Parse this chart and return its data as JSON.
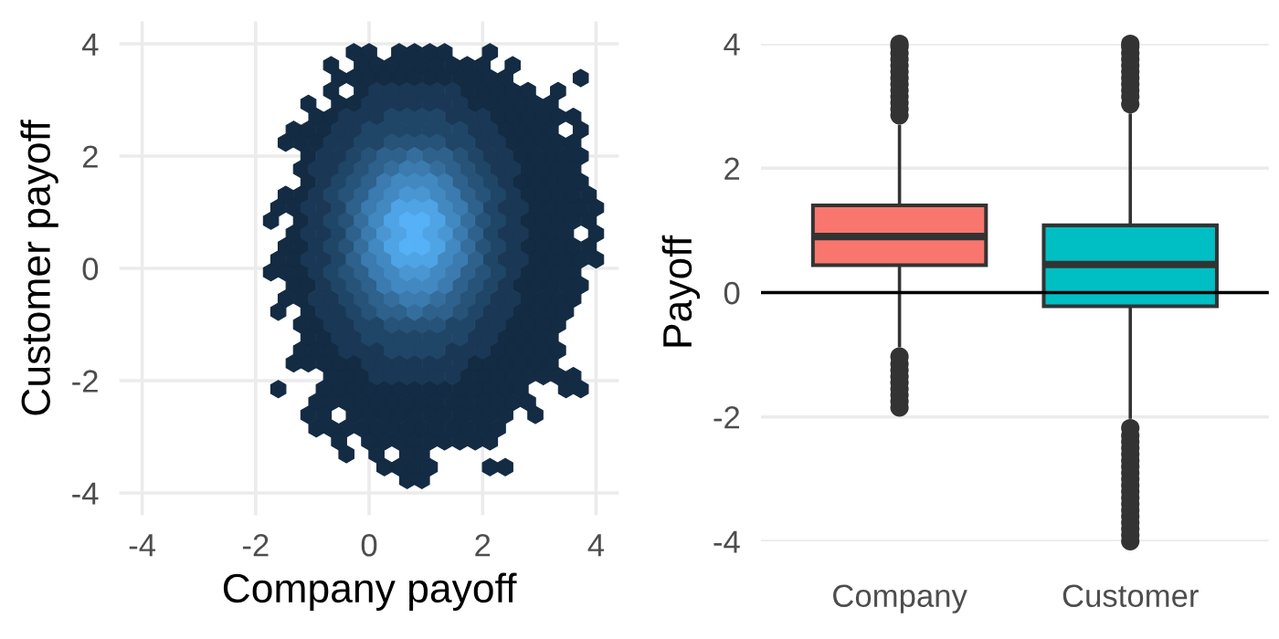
{
  "chart_data": [
    {
      "type": "scatter",
      "xlabel": "Company payoff",
      "ylabel": "Customer payoff",
      "xlim": [
        -4.4,
        4.4
      ],
      "ylim": [
        -4.4,
        4.4
      ],
      "xticks": [
        -4,
        -2,
        0,
        2,
        4
      ],
      "yticks": [
        -4,
        -2,
        0,
        2,
        4
      ],
      "grid": true,
      "series": [
        {
          "color": "#132b43",
          "x": [
            -0.27,
            0,
            0.53,
            0.8,
            1.07,
            1.33,
            2.13,
            -0.67,
            -0.13,
            0.13,
            0.4,
            0.67,
            0.93,
            1.2,
            1.47,
            1.73,
            2,
            2.53,
            -0.53,
            -0.27,
            0,
            0.27,
            0.53,
            0.8,
            1.07,
            1.33,
            1.6,
            1.87,
            2.13,
            2.4,
            3.73,
            -0.67,
            -0.13,
            1.73,
            2,
            2.27,
            2.53,
            2.8,
            3.33,
            -1.07,
            -0.53,
            -0.27,
            1.87,
            2.13,
            2.4,
            2.67,
            2.93,
            3.2,
            -0.93,
            -0.67,
            2.27,
            2.53,
            2.8,
            3.07,
            3.33,
            3.6,
            -1.33,
            -1.07,
            -0.8,
            2.4,
            2.67,
            2.93,
            3.2,
            3.73,
            -1.47,
            -1.2,
            -0.93,
            2.53,
            2.8,
            3.07,
            3.33,
            3.6,
            -1.07,
            2.67,
            2.93,
            3.2,
            3.47,
            3.73,
            -1.2,
            2.8,
            3.07,
            3.33,
            3.6,
            -1.07,
            2.67,
            2.93,
            3.2,
            3.47,
            3.73,
            -1.47,
            -1.2,
            2.8,
            3.07,
            3.33,
            3.6,
            3.87,
            -1.6,
            -1.33,
            2.93,
            3.2,
            3.47,
            3.73,
            4,
            -1.73,
            -1.2,
            2.8,
            3.07,
            3.33,
            3.6,
            3.87,
            -1.33,
            2.93,
            3.2,
            3.47,
            4,
            -1.47,
            -1.2,
            2.8,
            3.07,
            3.33,
            3.6,
            3.87,
            -1.6,
            -1.33,
            2.93,
            3.2,
            3.47,
            3.73,
            4,
            -1.73,
            -1.47,
            -1.2,
            2.8,
            3.07,
            3.33,
            3.6,
            -1.33,
            -1.07,
            2.67,
            2.93,
            3.2,
            3.47,
            3.73,
            -1.47,
            -1.2,
            2.8,
            3.07,
            3.33,
            3.6,
            -1.6,
            -1.07,
            2.67,
            2.93,
            3.2,
            3.47,
            -1.2,
            -0.93,
            2.53,
            2.8,
            3.07,
            3.33,
            -1.07,
            -0.8,
            2.4,
            2.67,
            2.93,
            3.2,
            -1.2,
            -0.93,
            -0.67,
            2.27,
            2.53,
            2.8,
            3.07,
            3.33,
            -1.33,
            -1.07,
            -0.8,
            -0.53,
            -0.27,
            1.87,
            2.13,
            2.4,
            2.67,
            2.93,
            3.2,
            -0.67,
            -0.4,
            -0.13,
            1.73,
            2,
            2.27,
            2.53,
            2.8,
            3.07,
            3.33,
            3.6,
            -1.6,
            -0.8,
            -0.53,
            -0.27,
            0,
            0.27,
            0.53,
            0.8,
            1.07,
            1.33,
            1.6,
            1.87,
            2.13,
            2.4,
            2.67,
            3.47,
            3.73,
            -0.93,
            -0.67,
            -0.4,
            -0.13,
            0.13,
            0.4,
            0.67,
            0.93,
            1.2,
            1.47,
            1.73,
            2,
            2.27,
            2.53,
            2.8,
            -1.07,
            -0.8,
            -0.27,
            0,
            0.27,
            0.53,
            0.8,
            1.07,
            1.33,
            1.6,
            1.87,
            2.13,
            2.4,
            2.93,
            -0.93,
            -0.67,
            -0.4,
            -0.13,
            0.13,
            0.4,
            0.67,
            0.93,
            1.2,
            1.47,
            1.73,
            2,
            2.27,
            -0.53,
            0,
            0.27,
            0.53,
            0.8,
            1.07,
            1.33,
            1.6,
            1.87,
            2.13,
            -0.4,
            0.13,
            0.67,
            0.93,
            0.27,
            0.53,
            0.8,
            1.07,
            2.13,
            2.4,
            0.67,
            0.93
          ],
          "values": [
            3.85,
            3.85,
            3.85,
            3.85,
            3.85,
            3.85,
            3.85,
            3.62,
            3.62,
            3.62,
            3.62,
            3.62,
            3.62,
            3.62,
            3.62,
            3.62,
            3.62,
            3.62,
            3.39,
            3.39,
            3.39,
            3.39,
            3.39,
            3.39,
            3.39,
            3.39,
            3.39,
            3.39,
            3.39,
            3.39,
            3.39,
            3.16,
            3.16,
            3.16,
            3.16,
            3.16,
            3.16,
            3.16,
            3.16,
            2.93,
            2.93,
            2.93,
            2.93,
            2.93,
            2.93,
            2.93,
            2.93,
            2.93,
            2.7,
            2.7,
            2.7,
            2.7,
            2.7,
            2.7,
            2.7,
            2.7,
            2.47,
            2.47,
            2.47,
            2.47,
            2.47,
            2.47,
            2.47,
            2.47,
            2.24,
            2.24,
            2.24,
            2.24,
            2.24,
            2.24,
            2.24,
            2.24,
            2,
            2,
            2,
            2,
            2,
            2,
            1.77,
            1.77,
            1.77,
            1.77,
            1.77,
            1.54,
            1.54,
            1.54,
            1.54,
            1.54,
            1.54,
            1.31,
            1.31,
            1.31,
            1.31,
            1.31,
            1.31,
            1.31,
            1.08,
            1.08,
            1.08,
            1.08,
            1.08,
            1.08,
            1.08,
            0.85,
            0.85,
            0.85,
            0.85,
            0.85,
            0.85,
            0.85,
            0.62,
            0.62,
            0.62,
            0.62,
            0.62,
            0.39,
            0.39,
            0.39,
            0.39,
            0.39,
            0.39,
            0.39,
            0.16,
            0.16,
            0.16,
            0.16,
            0.16,
            0.16,
            0.16,
            -0.07,
            -0.07,
            -0.07,
            -0.07,
            -0.07,
            -0.07,
            -0.07,
            -0.3,
            -0.3,
            -0.3,
            -0.3,
            -0.3,
            -0.3,
            -0.3,
            -0.54,
            -0.54,
            -0.54,
            -0.54,
            -0.54,
            -0.54,
            -0.77,
            -0.77,
            -0.77,
            -0.77,
            -0.77,
            -0.77,
            -1,
            -1,
            -1,
            -1,
            -1,
            -1,
            -1.23,
            -1.23,
            -1.23,
            -1.23,
            -1.23,
            -1.23,
            -1.46,
            -1.46,
            -1.46,
            -1.46,
            -1.46,
            -1.46,
            -1.46,
            -1.46,
            -1.69,
            -1.69,
            -1.69,
            -1.69,
            -1.69,
            -1.69,
            -1.69,
            -1.69,
            -1.69,
            -1.69,
            -1.69,
            -1.92,
            -1.92,
            -1.92,
            -1.92,
            -1.92,
            -1.92,
            -1.92,
            -1.92,
            -1.92,
            -1.92,
            -1.92,
            -2.15,
            -2.15,
            -2.15,
            -2.15,
            -2.15,
            -2.15,
            -2.15,
            -2.15,
            -2.15,
            -2.15,
            -2.15,
            -2.15,
            -2.15,
            -2.15,
            -2.15,
            -2.15,
            -2.15,
            -2.38,
            -2.38,
            -2.38,
            -2.38,
            -2.38,
            -2.38,
            -2.38,
            -2.38,
            -2.38,
            -2.38,
            -2.38,
            -2.38,
            -2.38,
            -2.38,
            -2.38,
            -2.61,
            -2.61,
            -2.61,
            -2.61,
            -2.61,
            -2.61,
            -2.61,
            -2.61,
            -2.61,
            -2.61,
            -2.61,
            -2.61,
            -2.61,
            -2.61,
            -2.85,
            -2.85,
            -2.85,
            -2.85,
            -2.85,
            -2.85,
            -2.85,
            -2.85,
            -2.85,
            -2.85,
            -2.85,
            -2.85,
            -2.85,
            -3.08,
            -3.08,
            -3.08,
            -3.08,
            -3.08,
            -3.08,
            -3.08,
            -3.08,
            -3.08,
            -3.08,
            -3.31,
            -3.31,
            -3.31,
            -3.31,
            -3.54,
            -3.54,
            -3.54,
            -3.54,
            -3.54,
            -3.54,
            -3.77,
            -3.77
          ]
        },
        {
          "color": "#1a3855",
          "x": [
            0.13,
            0.4,
            0.67,
            0.93,
            1.2,
            1.47,
            0,
            0.27,
            0.53,
            0.8,
            1.07,
            1.33,
            1.6,
            -0.4,
            -0.13,
            0.13,
            1.47,
            1.73,
            2,
            -0.53,
            -0.27,
            1.87,
            2.13,
            -0.67,
            -0.4,
            2,
            2.27,
            -0.8,
            -0.53,
            2.13,
            2.4,
            -0.93,
            -0.67,
            2.27,
            2.53,
            -0.8,
            2.4,
            -0.93,
            2.53,
            -1.07,
            -0.8,
            2.4,
            2.67,
            -0.93,
            2.53,
            -1.07,
            -0.8,
            2.4,
            2.67,
            -0.93,
            2.53,
            -1.07,
            -0.8,
            2.4,
            2.67,
            -0.93,
            2.53,
            -0.8,
            2.4,
            -0.93,
            -0.67,
            2.27,
            2.53,
            -0.8,
            -0.53,
            2.13,
            2.4,
            -0.67,
            -0.4,
            2,
            2.27,
            -0.53,
            -0.27,
            1.87,
            2.13,
            -0.4,
            -0.13,
            0.13,
            1.47,
            1.73,
            2,
            0,
            0.27,
            0.53,
            0.8,
            1.07,
            1.33,
            1.6,
            0.13,
            0.4,
            0.67,
            0.93,
            1.2,
            1.47
          ],
          "values": [
            3.16,
            3.16,
            3.16,
            3.16,
            3.16,
            3.16,
            2.93,
            2.93,
            2.93,
            2.93,
            2.93,
            2.93,
            2.93,
            2.7,
            2.7,
            2.7,
            2.7,
            2.7,
            2.7,
            2.47,
            2.47,
            2.47,
            2.47,
            2.24,
            2.24,
            2.24,
            2.24,
            2,
            2,
            2,
            2,
            1.77,
            1.77,
            1.77,
            1.77,
            1.54,
            1.54,
            1.31,
            1.31,
            1.08,
            1.08,
            1.08,
            1.08,
            0.85,
            0.85,
            0.62,
            0.62,
            0.62,
            0.62,
            0.39,
            0.39,
            0.16,
            0.16,
            0.16,
            0.16,
            -0.07,
            -0.07,
            -0.3,
            -0.3,
            -0.54,
            -0.54,
            -0.54,
            -0.54,
            -0.77,
            -0.77,
            -0.77,
            -0.77,
            -1,
            -1,
            -1,
            -1,
            -1.23,
            -1.23,
            -1.23,
            -1.23,
            -1.46,
            -1.46,
            -1.46,
            -1.46,
            -1.46,
            -1.46,
            -1.69,
            -1.69,
            -1.69,
            -1.69,
            -1.69,
            -1.69,
            -1.69,
            -1.92,
            -1.92,
            -1.92,
            -1.92,
            -1.92,
            -1.92
          ]
        },
        {
          "color": "#204667",
          "x": [
            0.4,
            0.67,
            0.93,
            1.2,
            0,
            0.27,
            0.53,
            0.8,
            1.07,
            1.33,
            1.6,
            -0.13,
            0.13,
            1.47,
            1.73,
            -0.27,
            1.87,
            -0.4,
            2,
            -0.53,
            2.13,
            -0.67,
            2.27,
            -0.53,
            2.13,
            -0.67,
            2.27,
            -0.53,
            2.13,
            -0.67,
            2.27,
            -0.53,
            2.13,
            -0.67,
            2.27,
            -0.53,
            2.13,
            -0.4,
            2,
            -0.27,
            1.87,
            -0.13,
            0.13,
            1.47,
            1.73,
            0,
            0.27,
            0.53,
            0.8,
            1.07,
            1.33,
            1.6,
            0.4,
            0.67,
            0.93,
            1.2
          ],
          "values": [
            2.7,
            2.7,
            2.7,
            2.7,
            2.47,
            2.47,
            2.47,
            2.47,
            2.47,
            2.47,
            2.47,
            2.24,
            2.24,
            2.24,
            2.24,
            2,
            2,
            1.77,
            1.77,
            1.54,
            1.54,
            1.31,
            1.31,
            1.08,
            1.08,
            0.85,
            0.85,
            0.62,
            0.62,
            0.39,
            0.39,
            0.16,
            0.16,
            -0.07,
            -0.07,
            -0.3,
            -0.3,
            -0.54,
            -0.54,
            -0.77,
            -0.77,
            -1,
            -1,
            -1,
            -1,
            -1.23,
            -1.23,
            -1.23,
            -1.23,
            -1.23,
            -1.23,
            -1.23,
            -1.46,
            -1.46,
            -1.46,
            -1.46
          ]
        },
        {
          "color": "#275379",
          "x": [
            0.4,
            0.67,
            0.93,
            1.2,
            0,
            1.6,
            -0.13,
            1.73,
            -0.27,
            1.87,
            -0.4,
            2,
            -0.4,
            2,
            -0.4,
            2,
            -0.4,
            2,
            -0.27,
            1.87,
            -0.13,
            1.73,
            0,
            1.6,
            0.4,
            0.67,
            0.93,
            1.2
          ],
          "values": [
            2.24,
            2.24,
            2.24,
            2.24,
            2,
            2,
            1.77,
            1.77,
            1.54,
            1.54,
            1.31,
            1.31,
            0.85,
            0.85,
            0.39,
            0.39,
            -0.07,
            -0.07,
            -0.3,
            -0.3,
            -0.54,
            -0.54,
            -0.77,
            -0.77,
            -1,
            -1,
            -1,
            -1
          ]
        },
        {
          "color": "#2e618b",
          "x": [
            0.27,
            0.53,
            1.07,
            1.33,
            0.13,
            1.47,
            0,
            1.6,
            -0.13,
            1.73,
            -0.27,
            1.87,
            -0.27,
            1.87,
            -0.27,
            1.87,
            -0.13,
            1.73,
            0,
            1.6,
            0.13,
            1.47,
            0.27,
            0.53,
            1.07,
            1.33
          ],
          "values": [
            2,
            2,
            2,
            2,
            1.77,
            1.77,
            1.54,
            1.54,
            1.31,
            1.31,
            1.08,
            1.08,
            0.62,
            0.62,
            0.16,
            0.16,
            -0.07,
            -0.07,
            -0.3,
            -0.3,
            -0.54,
            -0.54,
            -0.77,
            -0.77,
            -0.77,
            -0.77
          ]
        },
        {
          "color": "#356e9d",
          "x": [
            0.8,
            0.4,
            1.2,
            -0.13,
            1.73,
            -0.13,
            1.73,
            0.4,
            1.2,
            0.8
          ],
          "values": [
            2,
            1.77,
            1.77,
            0.85,
            0.85,
            0.39,
            0.39,
            -0.54,
            -0.54,
            -0.77
          ]
        },
        {
          "color": "#3b7baf",
          "x": [
            0.67,
            0.93,
            0.27,
            1.33,
            0.13,
            1.47,
            0,
            1.6,
            0,
            1.6,
            0,
            1.6,
            0.13,
            1.47,
            0.27,
            1.33,
            0.67,
            0.93
          ],
          "values": [
            1.77,
            1.77,
            1.54,
            1.54,
            1.31,
            1.31,
            1.08,
            1.08,
            0.62,
            0.62,
            0.16,
            0.16,
            -0.07,
            -0.07,
            -0.3,
            -0.3,
            -0.54,
            -0.54
          ]
        },
        {
          "color": "#4289c1",
          "x": [
            0.53,
            0.8,
            1.07,
            0.4,
            1.2,
            0.27,
            1.33,
            0.13,
            1.47,
            0.13,
            1.47,
            0.27,
            1.33,
            0.4,
            1.2,
            0.53,
            0.8,
            1.07
          ],
          "values": [
            1.54,
            1.54,
            1.54,
            1.31,
            1.31,
            1.08,
            1.08,
            0.85,
            0.85,
            0.39,
            0.39,
            0.16,
            0.16,
            -0.07,
            -0.07,
            -0.3,
            -0.3,
            -0.3
          ]
        },
        {
          "color": "#4996d3",
          "x": [
            0.67,
            0.93,
            0.27,
            1.33,
            0.67,
            0.93
          ],
          "values": [
            1.31,
            1.31,
            0.62,
            0.62,
            -0.07,
            -0.07
          ]
        },
        {
          "color": "#4fa4e5",
          "x": [
            0.53,
            0.8,
            1.07,
            0.4,
            1.2,
            0.53,
            1.07,
            0.4,
            1.2,
            0.53,
            0.8,
            1.07
          ],
          "values": [
            1.08,
            1.08,
            1.08,
            0.85,
            0.85,
            0.62,
            0.62,
            0.39,
            0.39,
            0.16,
            0.16,
            0.16
          ]
        },
        {
          "color": "#56b1f7",
          "x": [
            0.67,
            0.93,
            0.8,
            0.67,
            0.93
          ],
          "values": [
            0.85,
            0.85,
            0.62,
            0.39,
            0.39
          ]
        }
      ]
    },
    {
      "type": "box",
      "categories": [
        "Company",
        "Customer"
      ],
      "colors": [
        "#f8766d",
        "#00bfc4"
      ],
      "boxes": [
        {
          "low": -0.88,
          "q1": 0.44,
          "median": 0.9,
          "q3": 1.4,
          "high": 2.7,
          "outliers": [
            -1.85,
            -1.75,
            -1.65,
            -1.55,
            -1.45,
            -1.35,
            -1.25,
            -1.15,
            -1.03,
            2.85,
            2.95,
            3.05,
            3.15,
            3.25,
            3.35,
            3.45,
            3.55,
            3.65,
            3.75,
            3.85,
            3.95,
            4
          ]
        },
        {
          "low": -2.03,
          "q1": -0.22,
          "median": 0.45,
          "q3": 1.08,
          "high": 2.88,
          "outliers": [
            -4,
            -3.9,
            -3.8,
            -3.7,
            -3.6,
            -3.5,
            -3.4,
            -3.3,
            -3.2,
            -3.1,
            -3,
            -2.9,
            -2.8,
            -2.7,
            -2.6,
            -2.5,
            -2.4,
            -2.3,
            -2.18,
            3.03,
            3.15,
            3.25,
            3.35,
            3.45,
            3.55,
            3.65,
            3.75,
            3.85,
            3.95,
            4
          ]
        }
      ],
      "ylabel": "Payoff",
      "ylim": [
        -4,
        4
      ],
      "yticks": [
        -4,
        -2,
        0,
        2,
        4
      ],
      "grid": "y",
      "ref_lines": [
        {
          "axis": "y",
          "value": 0,
          "color": "#000000"
        }
      ]
    }
  ]
}
